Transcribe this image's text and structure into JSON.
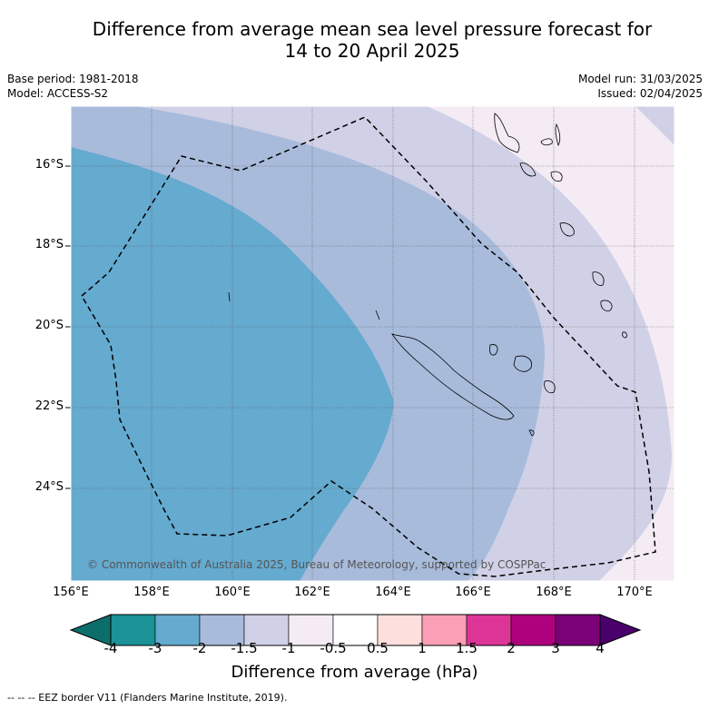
{
  "title_line1": "Difference from average mean sea level pressure forecast for",
  "title_line2": "14 to 20 April 2025",
  "meta_left": {
    "base_period": "Base period: 1981-2018",
    "model": "Model: ACCESS-S2"
  },
  "meta_right": {
    "model_run": "Model run: 31/03/2025",
    "issued": "Issued: 02/04/2025"
  },
  "latitude_labels": [
    "16°S",
    "18°S",
    "20°S",
    "22°S",
    "24°S"
  ],
  "longitude_labels": [
    "156°E",
    "158°E",
    "160°E",
    "162°E",
    "164°E",
    "166°E",
    "168°E",
    "170°E"
  ],
  "copyright": "© Commonwealth of Australia 2025, Bureau of Meteorology, supported by COSPPac",
  "colorbar": {
    "ticks": [
      "-4",
      "-3",
      "-2",
      "-1.5",
      "-1",
      "-0.5",
      "0.5",
      "1",
      "1.5",
      "2",
      "3",
      "4"
    ],
    "colors": [
      "#1a9296",
      "#65aacf",
      "#a8bbdb",
      "#d0d1e6",
      "#f4ebf5",
      "#ffffff",
      "#fde0dd",
      "#fa9fb5",
      "#dd3497",
      "#ae017e",
      "#7a0177"
    ],
    "under_color": "#0b6e6a",
    "over_color": "#49006a",
    "title": "Difference from average (hPa)"
  },
  "footnote": "-- -- -- EEZ border V11 (Flanders Marine Institute, 2019)."
}
